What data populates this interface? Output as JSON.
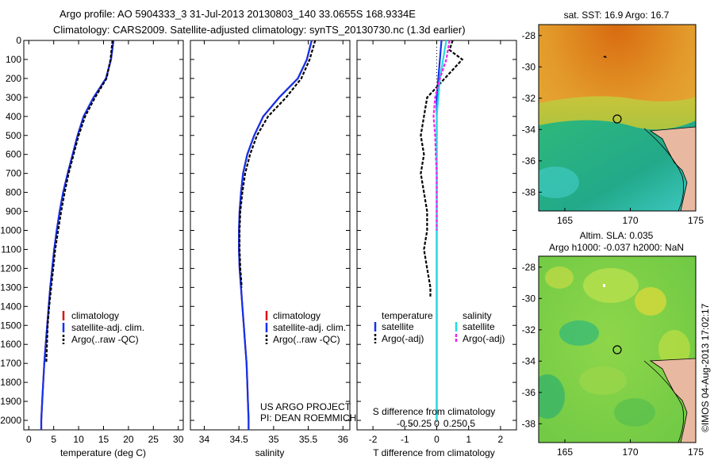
{
  "header": {
    "line1": "Argo profile: AO 5904333_3 31-Jul-2013 20130803_140 33.0655S 168.9334E",
    "line2": "Climatology: CARS2009. Satellite-adjusted climatology: synTS_20130730.nc (1.3d earlier)"
  },
  "footer": {
    "project_line1": "US ARGO PROJECT",
    "project_line2": "PI: DEAN ROEMMICH",
    "timestamp": "©IMOS 04-Aug-2013 17:02:17"
  },
  "colors": {
    "climatology": "#dd1111",
    "satellite": "#1133ee",
    "argo": "#000000",
    "salinity_satellite": "#22dddd",
    "salinity_argo": "#ee22ee"
  },
  "legend": {
    "climatology": "climatology",
    "satellite_adj": "satellite-adj. clim.",
    "argo_raw": "Argo(..raw -QC)",
    "temperature_title": "temperature",
    "salinity_title": "salinity",
    "satellite": "satellite",
    "argo_adj": "Argo(-adj)"
  },
  "maps": {
    "sst": {
      "title": "sat. SST: 16.9 Argo: 16.7",
      "xticks": [
        "165",
        "170",
        "175"
      ],
      "yticks": [
        "-28",
        "-30",
        "-32",
        "-34",
        "-36",
        "-38"
      ]
    },
    "sla": {
      "title_line1": "Altim. SLA: 0.035",
      "title_line2": "Argo h1000: -0.037 h2000: NaN",
      "xticks": [
        "165",
        "170",
        "175"
      ],
      "yticks": [
        "-28",
        "-30",
        "-32",
        "-34",
        "-36",
        "-38"
      ]
    }
  },
  "chart_data": [
    {
      "type": "line",
      "name": "temperature",
      "xlabel": "temperature (deg C)",
      "ylabel": "",
      "xlim": [
        -1,
        31
      ],
      "ylim": [
        2050,
        0
      ],
      "xticks": [
        0,
        5,
        10,
        15,
        20,
        25,
        30
      ],
      "yticks": [
        0,
        100,
        200,
        300,
        400,
        500,
        600,
        700,
        800,
        900,
        1000,
        1100,
        1200,
        1300,
        1400,
        1500,
        1600,
        1700,
        1800,
        1900,
        2000
      ],
      "series": [
        {
          "name": "climatology",
          "x": [
            17,
            16.5,
            15.5,
            13,
            11,
            9.8,
            8.8,
            7.8,
            6.9,
            6.2,
            5.6,
            5.1,
            4.7,
            4.3,
            4.0,
            3.7,
            3.4,
            3.1,
            2.9,
            2.7,
            2.5,
            2.5
          ],
          "y": [
            0,
            100,
            200,
            300,
            400,
            500,
            600,
            700,
            800,
            900,
            1000,
            1100,
            1200,
            1300,
            1400,
            1500,
            1600,
            1700,
            1800,
            1900,
            2000,
            2050
          ]
        },
        {
          "name": "satellite-adj. clim.",
          "x": [
            17,
            16.5,
            15.5,
            13,
            11,
            9.8,
            8.8,
            7.8,
            6.9,
            6.2,
            5.6,
            5.1,
            4.7,
            4.3,
            4.0,
            3.7,
            3.4,
            3.1,
            2.9,
            2.7,
            2.5,
            2.5
          ],
          "y": [
            0,
            100,
            200,
            300,
            400,
            500,
            600,
            700,
            800,
            900,
            1000,
            1100,
            1200,
            1300,
            1400,
            1500,
            1600,
            1700,
            1800,
            1900,
            2000,
            2050
          ]
        },
        {
          "name": "Argo(..raw -QC)",
          "x": [
            16.8,
            16.4,
            15.6,
            13.3,
            11.3,
            10.0,
            9.0,
            8.0,
            7.2,
            6.5,
            5.9,
            5.3,
            4.9,
            4.5,
            4.1,
            3.8,
            3.5
          ],
          "y": [
            0,
            100,
            200,
            300,
            400,
            500,
            600,
            700,
            800,
            900,
            1000,
            1100,
            1200,
            1300,
            1400,
            1500,
            1700
          ]
        }
      ]
    },
    {
      "type": "line",
      "name": "salinity",
      "xlabel": "salinity",
      "ylabel": "",
      "xlim": [
        33.8,
        36.1
      ],
      "ylim": [
        2050,
        0
      ],
      "xticks": [
        34,
        34.5,
        35,
        35.5,
        36
      ],
      "series": [
        {
          "name": "climatology",
          "x": [
            35.55,
            35.48,
            35.35,
            35.08,
            34.85,
            34.72,
            34.62,
            34.56,
            34.53,
            34.51,
            34.5,
            34.5,
            34.51,
            34.53,
            34.55,
            34.57,
            34.59,
            34.61,
            34.62,
            34.63,
            34.64,
            34.64
          ],
          "y": [
            0,
            100,
            200,
            300,
            400,
            500,
            600,
            700,
            800,
            900,
            1000,
            1100,
            1200,
            1300,
            1400,
            1500,
            1600,
            1700,
            1800,
            1900,
            2000,
            2050
          ]
        },
        {
          "name": "satellite-adj. clim.",
          "x": [
            35.55,
            35.48,
            35.35,
            35.08,
            34.85,
            34.72,
            34.62,
            34.56,
            34.53,
            34.51,
            34.5,
            34.5,
            34.51,
            34.53,
            34.55,
            34.57,
            34.59,
            34.61,
            34.62,
            34.63,
            34.64,
            34.64
          ],
          "y": [
            0,
            100,
            200,
            300,
            400,
            500,
            600,
            700,
            800,
            900,
            1000,
            1100,
            1200,
            1300,
            1400,
            1500,
            1600,
            1700,
            1800,
            1900,
            2000,
            2050
          ]
        },
        {
          "name": "Argo(..raw -QC)",
          "x": [
            35.6,
            35.52,
            35.4,
            35.18,
            34.92,
            34.76,
            34.66,
            34.59,
            34.55,
            34.52,
            34.51,
            34.51,
            34.52,
            34.54
          ],
          "y": [
            0,
            100,
            200,
            300,
            400,
            500,
            600,
            700,
            800,
            900,
            1000,
            1100,
            1200,
            1300
          ]
        }
      ]
    },
    {
      "type": "line",
      "name": "difference",
      "xlabel": "T difference from climatology",
      "xlabel_top": "S difference from climatology",
      "ylabel": "",
      "xlim": [
        -2.5,
        2.5
      ],
      "ylim": [
        2050,
        0
      ],
      "xticks": [
        -2,
        -1,
        0,
        1,
        2
      ],
      "xticks_top": [
        "-0.5",
        "-0.25",
        "0",
        "0.25",
        "0.5"
      ],
      "series": [
        {
          "name": "temperature satellite",
          "x": [
            0.15,
            0.1,
            0.05,
            0.0,
            0.0,
            0.0,
            0.0,
            0.0,
            0.0,
            0.0,
            0.0,
            0.0,
            0.0,
            0.0,
            0.0,
            0.0,
            0.0,
            0.0,
            0.0,
            0.0,
            0.0
          ],
          "y": [
            0,
            100,
            200,
            300,
            400,
            500,
            600,
            700,
            800,
            900,
            1000,
            1100,
            1200,
            1300,
            1400,
            1500,
            1600,
            1700,
            1800,
            1900,
            2000
          ]
        },
        {
          "name": "temperature Argo(-adj)",
          "x": [
            0.5,
            0.4,
            0.8,
            -0.3,
            -0.4,
            -0.5,
            -0.4,
            -0.5,
            -0.4,
            -0.3,
            -0.3,
            -0.4,
            -0.3,
            -0.2,
            -0.2
          ],
          "y": [
            0,
            50,
            100,
            300,
            400,
            500,
            600,
            700,
            800,
            900,
            1000,
            1100,
            1200,
            1300,
            1350
          ]
        },
        {
          "name": "salinity satellite",
          "x": [
            0.3,
            0.2,
            0.1,
            0.05,
            0.0,
            0.0,
            0.0,
            0.0,
            0.0,
            0.0,
            0.0,
            0.0,
            0.0,
            0.0,
            0.0,
            0.0,
            0.0,
            0.0,
            0.0,
            0.0,
            0.0
          ],
          "y": [
            0,
            100,
            200,
            300,
            400,
            500,
            600,
            700,
            800,
            900,
            1000,
            1100,
            1200,
            1300,
            1400,
            1500,
            1600,
            1700,
            1800,
            1900,
            2000
          ]
        },
        {
          "name": "salinity Argo(-adj)",
          "x": [
            0.4,
            0.3,
            0.1,
            -0.05,
            -0.1,
            -0.05,
            -0.03,
            0.0,
            0.0,
            0.0,
            0.0
          ],
          "y": [
            0,
            100,
            200,
            300,
            400,
            500,
            600,
            700,
            800,
            900,
            1000
          ]
        }
      ]
    }
  ]
}
